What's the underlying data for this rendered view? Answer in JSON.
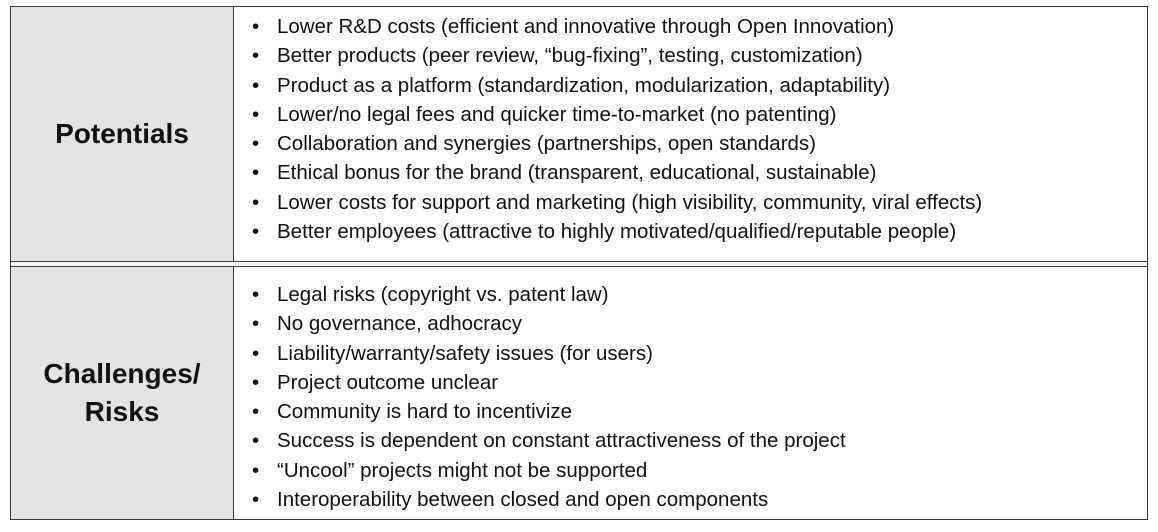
{
  "sections": [
    {
      "label_lines": [
        "Potentials"
      ],
      "items": [
        "Lower R&D costs (efficient and innovative through Open Innovation)",
        "Better products (peer review, “bug-fixing”, testing, customization)",
        "Product as a platform (standardization, modularization, adaptability)",
        "Lower/no legal fees and quicker time-to-market (no patenting)",
        "Collaboration and synergies (partnerships, open standards)",
        "Ethical bonus for the brand (transparent, educational, sustainable)",
        "Lower costs for support and marketing (high visibility, community, viral effects)",
        "Better employees (attractive to highly motivated/qualified/reputable people)"
      ]
    },
    {
      "label_lines": [
        "Challenges/",
        "Risks"
      ],
      "items": [
        "Legal risks (copyright vs. patent law)",
        "No governance, adhocracy",
        "Liability/warranty/safety issues (for users)",
        "Project outcome unclear",
        "Community is hard to incentivize",
        "Success is dependent on constant attractiveness of the project",
        "“Uncool” projects might not be supported",
        "Interoperability between closed and open components"
      ]
    }
  ],
  "colors": {
    "label_background": "#e3e3e3",
    "border": "#3a3a3a",
    "text": "#111111"
  }
}
